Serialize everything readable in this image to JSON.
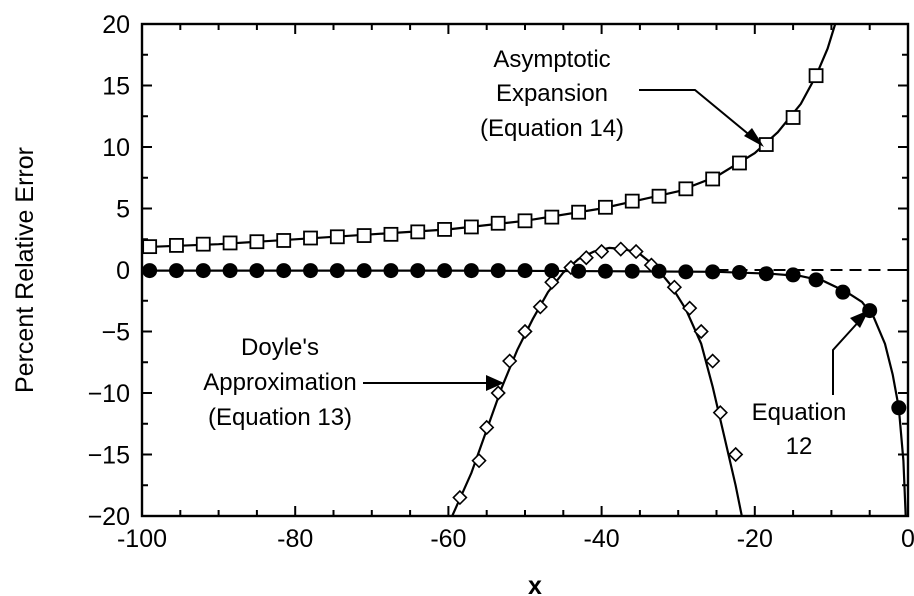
{
  "chart_data": {
    "type": "line",
    "title": "",
    "xlabel": "x",
    "ylabel": "Percent Relative Error",
    "xlim": [
      -100,
      0
    ],
    "ylim": [
      -20,
      20
    ],
    "xticks": [
      -100,
      -80,
      -60,
      -40,
      -20,
      0
    ],
    "xtick_labels": [
      "-100",
      "-80",
      "-60",
      "-40",
      "-20",
      "0"
    ],
    "yticks": [
      -20,
      -15,
      -10,
      -5,
      0,
      5,
      10,
      15,
      20
    ],
    "ytick_labels": [
      "−20",
      "−15",
      "−10",
      "−5",
      "0",
      "5",
      "10",
      "15",
      "20"
    ],
    "grid": false,
    "legend": "none",
    "zero_reference": {
      "style": "dashed",
      "y": 0
    },
    "series": [
      {
        "name": "Asymptotic Expansion (Equation 14)",
        "marker": "open-square",
        "points": [
          [
            -99,
            1.9
          ],
          [
            -95.5,
            2.0
          ],
          [
            -92,
            2.1
          ],
          [
            -88.5,
            2.2
          ],
          [
            -85,
            2.3
          ],
          [
            -81.5,
            2.4
          ],
          [
            -78,
            2.6
          ],
          [
            -74.5,
            2.7
          ],
          [
            -71,
            2.8
          ],
          [
            -67.5,
            2.9
          ],
          [
            -64,
            3.1
          ],
          [
            -60.5,
            3.3
          ],
          [
            -57,
            3.5
          ],
          [
            -53.5,
            3.8
          ],
          [
            -50,
            4.0
          ],
          [
            -46.5,
            4.3
          ],
          [
            -43,
            4.7
          ],
          [
            -39.5,
            5.1
          ],
          [
            -36,
            5.6
          ],
          [
            -32.5,
            6.0
          ],
          [
            -29,
            6.6
          ],
          [
            -25.5,
            7.4
          ],
          [
            -22,
            8.7
          ],
          [
            -18.5,
            10.2
          ],
          [
            -15,
            12.4
          ],
          [
            -12,
            15.8
          ]
        ],
        "curve": [
          [
            -100,
            1.85
          ],
          [
            -90,
            2.1
          ],
          [
            -80,
            2.5
          ],
          [
            -70,
            2.9
          ],
          [
            -60,
            3.3
          ],
          [
            -50,
            4.0
          ],
          [
            -40,
            5.0
          ],
          [
            -35,
            5.7
          ],
          [
            -30,
            6.4
          ],
          [
            -25,
            7.6
          ],
          [
            -20,
            9.5
          ],
          [
            -17,
            11.2
          ],
          [
            -14,
            13.5
          ],
          [
            -12,
            15.8
          ],
          [
            -10.5,
            18.0
          ],
          [
            -9.5,
            20.0
          ]
        ]
      },
      {
        "name": "Doyle's Approximation (Equation 13)",
        "marker": "open-diamond",
        "points": [
          [
            -58.5,
            -18.5
          ],
          [
            -56,
            -15.5
          ],
          [
            -55,
            -12.8
          ],
          [
            -53.5,
            -10.0
          ],
          [
            -52,
            -7.4
          ],
          [
            -50,
            -5.0
          ],
          [
            -48,
            -3.0
          ],
          [
            -46.5,
            -1.0
          ],
          [
            -44,
            0.2
          ],
          [
            -42,
            1.0
          ],
          [
            -40,
            1.5
          ],
          [
            -37.5,
            1.7
          ],
          [
            -35.5,
            1.5
          ],
          [
            -33.5,
            0.4
          ],
          [
            -30.5,
            -1.4
          ],
          [
            -28.5,
            -3.1
          ],
          [
            -27,
            -5.0
          ],
          [
            -25.5,
            -7.4
          ],
          [
            -24.5,
            -11.6
          ],
          [
            -22.5,
            -15.0
          ]
        ],
        "curve": [
          [
            -59.5,
            -20
          ],
          [
            -57,
            -16.5
          ],
          [
            -55,
            -13
          ],
          [
            -53,
            -9.5
          ],
          [
            -51,
            -6.5
          ],
          [
            -49,
            -4.0
          ],
          [
            -47,
            -1.8
          ],
          [
            -45,
            -0.2
          ],
          [
            -43,
            0.9
          ],
          [
            -41,
            1.5
          ],
          [
            -39,
            1.8
          ],
          [
            -37,
            1.7
          ],
          [
            -35,
            1.3
          ],
          [
            -33,
            0.3
          ],
          [
            -31,
            -1.2
          ],
          [
            -29,
            -3.2
          ],
          [
            -27,
            -6.0
          ],
          [
            -25.5,
            -9.5
          ],
          [
            -24,
            -13.5
          ],
          [
            -22.5,
            -17.5
          ],
          [
            -21.7,
            -20
          ]
        ]
      },
      {
        "name": "Equation 12",
        "marker": "filled-circle",
        "points": [
          [
            -99,
            -0.05
          ],
          [
            -95.5,
            -0.05
          ],
          [
            -92,
            -0.05
          ],
          [
            -88.5,
            -0.05
          ],
          [
            -85,
            -0.05
          ],
          [
            -81.5,
            -0.05
          ],
          [
            -78,
            -0.05
          ],
          [
            -74.5,
            -0.05
          ],
          [
            -71,
            -0.05
          ],
          [
            -67.5,
            -0.05
          ],
          [
            -64,
            -0.05
          ],
          [
            -60.5,
            -0.05
          ],
          [
            -57,
            -0.05
          ],
          [
            -53.5,
            -0.05
          ],
          [
            -50,
            -0.05
          ],
          [
            -46.5,
            -0.05
          ],
          [
            -43,
            -0.1
          ],
          [
            -39.5,
            -0.1
          ],
          [
            -36,
            -0.1
          ],
          [
            -32.5,
            -0.1
          ],
          [
            -29,
            -0.15
          ],
          [
            -25.5,
            -0.15
          ],
          [
            -22,
            -0.2
          ],
          [
            -18.5,
            -0.3
          ],
          [
            -15,
            -0.4
          ],
          [
            -12,
            -0.8
          ],
          [
            -8.5,
            -1.8
          ],
          [
            -5,
            -3.3
          ],
          [
            -1.2,
            -11.2
          ]
        ],
        "curve": [
          [
            -100,
            -0.05
          ],
          [
            -60,
            -0.05
          ],
          [
            -40,
            -0.1
          ],
          [
            -25,
            -0.15
          ],
          [
            -18,
            -0.3
          ],
          [
            -14,
            -0.5
          ],
          [
            -11,
            -0.9
          ],
          [
            -8,
            -1.8
          ],
          [
            -6,
            -2.6
          ],
          [
            -4.5,
            -3.8
          ],
          [
            -3,
            -6.0
          ],
          [
            -2,
            -8.5
          ],
          [
            -1.2,
            -11.2
          ],
          [
            -0.6,
            -15.5
          ],
          [
            -0.3,
            -20
          ]
        ]
      }
    ],
    "annotations": [
      {
        "lines": [
          "Asymptotic",
          "Expansion",
          "(Equation 14)"
        ],
        "points_to": [
          -19,
          10
        ]
      },
      {
        "lines": [
          "Doyle's",
          "Approximation",
          "(Equation 13)"
        ],
        "points_to": [
          -53.5,
          -9.2
        ]
      },
      {
        "lines": [
          "Equation",
          "12"
        ],
        "points_to": [
          -5,
          -3.3
        ]
      }
    ]
  }
}
